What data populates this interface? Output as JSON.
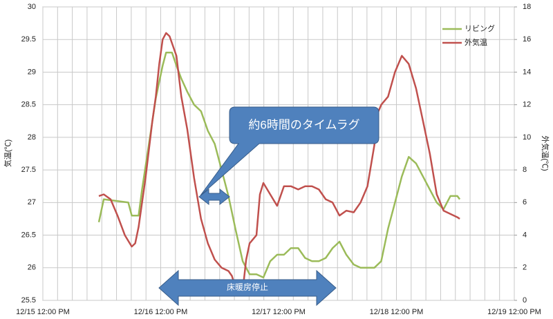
{
  "chart_data": {
    "type": "line",
    "xlim": [
      0,
      96
    ],
    "xticks": [
      {
        "value": 0,
        "label": "12/15 12:00 PM"
      },
      {
        "value": 3,
        "label": null
      },
      {
        "value": 6,
        "label": null
      },
      {
        "value": 9,
        "label": null
      },
      {
        "value": 12,
        "label": null
      },
      {
        "value": 15,
        "label": null
      },
      {
        "value": 18,
        "label": null
      },
      {
        "value": 21,
        "label": null
      },
      {
        "value": 24,
        "label": "12/16 12:00 PM"
      },
      {
        "value": 27,
        "label": null
      },
      {
        "value": 30,
        "label": null
      },
      {
        "value": 33,
        "label": null
      },
      {
        "value": 36,
        "label": null
      },
      {
        "value": 39,
        "label": null
      },
      {
        "value": 42,
        "label": null
      },
      {
        "value": 45,
        "label": null
      },
      {
        "value": 48,
        "label": "12/17 12:00 PM"
      },
      {
        "value": 51,
        "label": null
      },
      {
        "value": 54,
        "label": null
      },
      {
        "value": 57,
        "label": null
      },
      {
        "value": 60,
        "label": null
      },
      {
        "value": 63,
        "label": null
      },
      {
        "value": 66,
        "label": null
      },
      {
        "value": 69,
        "label": null
      },
      {
        "value": 72,
        "label": "12/18 12:00 PM"
      },
      {
        "value": 75,
        "label": null
      },
      {
        "value": 78,
        "label": null
      },
      {
        "value": 81,
        "label": null
      },
      {
        "value": 84,
        "label": null
      },
      {
        "value": 87,
        "label": null
      },
      {
        "value": 90,
        "label": null
      },
      {
        "value": 93,
        "label": null
      },
      {
        "value": 96,
        "label": "12/19 12:00 PM"
      }
    ],
    "ylim": [
      25.5,
      30
    ],
    "yticks": [
      25.5,
      26,
      26.5,
      27,
      27.5,
      28,
      28.5,
      29,
      29.5,
      30
    ],
    "y2lim": [
      0,
      18
    ],
    "y2ticks": [
      0,
      2,
      4,
      6,
      8,
      10,
      12,
      14,
      16,
      18
    ],
    "y_label": "気温(℃)",
    "y2_label": "外気温(℃)",
    "grid": true,
    "legend": "top-right",
    "annotations": [
      "約6時間のタイムラグ",
      "床暖房停止"
    ],
    "series": [
      {
        "name": "リビング",
        "color": "#9bbb59",
        "axis": "y",
        "x": [
          11.4,
          12.4,
          17.4,
          18.1,
          19.5,
          20.2,
          21.6,
          23.0,
          24.4,
          25.1,
          26.3,
          27.2,
          28.2,
          29.4,
          30.8,
          32.2,
          33.6,
          35.0,
          36.4,
          37.8,
          39.2,
          40.7,
          42.1,
          43.5,
          44.9,
          46.3,
          47.7,
          49.1,
          50.5,
          52.0,
          53.4,
          54.8,
          56.2,
          57.6,
          59.0,
          60.4,
          61.8,
          63.3,
          64.7,
          66.1,
          67.5,
          68.9,
          70.3,
          71.7,
          73.1,
          74.5,
          76.0,
          77.4,
          78.8,
          80.2,
          81.6,
          83.0,
          84.4,
          84.9
        ],
        "values": [
          26.7,
          27.05,
          27.0,
          26.8,
          26.8,
          27.2,
          27.9,
          28.6,
          29.1,
          29.3,
          29.3,
          29.1,
          28.9,
          28.7,
          28.5,
          28.4,
          28.1,
          27.9,
          27.5,
          27.1,
          26.6,
          26.1,
          25.9,
          25.9,
          25.85,
          26.1,
          26.2,
          26.2,
          26.3,
          26.3,
          26.15,
          26.1,
          26.1,
          26.15,
          26.3,
          26.4,
          26.2,
          26.05,
          26.0,
          26.0,
          26.0,
          26.1,
          26.6,
          27.0,
          27.4,
          27.7,
          27.6,
          27.4,
          27.2,
          27.0,
          26.9,
          27.1,
          27.1,
          27.05
        ]
      },
      {
        "name": "外気温",
        "color": "#c0504d",
        "axis": "y2",
        "x": [
          11.4,
          12.4,
          13.8,
          15.2,
          16.7,
          18.1,
          18.8,
          19.5,
          20.9,
          22.3,
          23.0,
          23.7,
          24.4,
          25.1,
          25.8,
          27.2,
          28.2,
          29.4,
          30.8,
          32.2,
          33.6,
          35.0,
          36.4,
          37.8,
          38.5,
          39.2,
          40.7,
          41.4,
          42.1,
          43.5,
          44.2,
          44.9,
          46.3,
          47.7,
          49.1,
          50.5,
          52.0,
          53.4,
          54.8,
          56.2,
          57.6,
          59.0,
          60.4,
          61.8,
          63.3,
          64.7,
          66.1,
          67.5,
          68.2,
          68.9,
          70.3,
          71.7,
          73.1,
          74.5,
          76.0,
          77.4,
          78.8,
          80.2,
          81.6,
          83.0,
          84.4,
          84.9
        ],
        "values": [
          6.4,
          6.5,
          6.2,
          5.2,
          4.0,
          3.3,
          3.5,
          4.5,
          7.5,
          11.0,
          12.5,
          14.5,
          16.0,
          16.4,
          16.2,
          15.0,
          12.5,
          10.5,
          7.5,
          5.0,
          3.5,
          2.5,
          2.0,
          1.8,
          1.5,
          0.8,
          0.6,
          2.5,
          3.5,
          4.0,
          6.5,
          7.2,
          6.5,
          5.8,
          7.0,
          7.0,
          6.8,
          7.0,
          7.0,
          6.8,
          6.2,
          6.0,
          5.2,
          5.5,
          5.4,
          6.0,
          7.0,
          9.5,
          11.5,
          12.0,
          12.5,
          14.0,
          15.0,
          14.5,
          13.0,
          11.0,
          9.0,
          6.5,
          5.5,
          5.3,
          5.1,
          5.0
        ]
      }
    ]
  }
}
